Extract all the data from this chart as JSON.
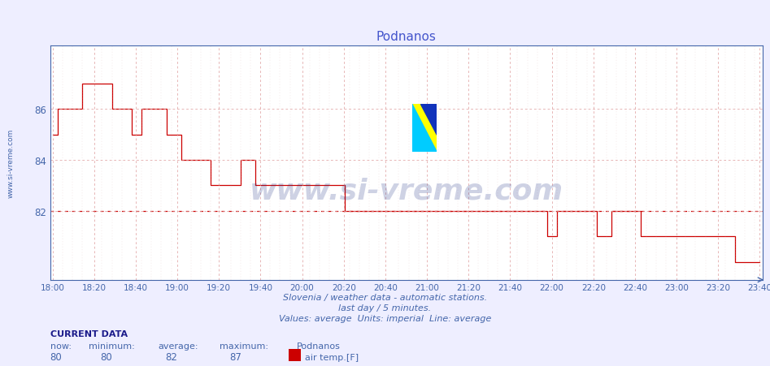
{
  "title": "Podnanos",
  "bg_color": "#eeeeff",
  "plot_bg_color": "#ffffff",
  "line_color": "#cc0000",
  "avg_value": 82,
  "axis_color": "#4466aa",
  "tick_color": "#4466aa",
  "title_color": "#4455cc",
  "ylabel_text": "www.si-vreme.com",
  "xlabel_texts": [
    "18:00",
    "18:20",
    "18:40",
    "19:00",
    "19:20",
    "19:40",
    "20:00",
    "20:20",
    "20:40",
    "21:00",
    "21:20",
    "21:40",
    "22:00",
    "22:20",
    "22:40",
    "23:00",
    "23:20",
    "23:40"
  ],
  "subtitle1": "Slovenia / weather data - automatic stations.",
  "subtitle2": "last day / 5 minutes.",
  "subtitle3": "Values: average  Units: imperial  Line: average",
  "current_data_label": "CURRENT DATA",
  "now_label": "now:",
  "now_value": "80",
  "min_label": "minimum:",
  "min_value": "80",
  "avg_label": "average:",
  "avg_display": "82",
  "max_label": "maximum:",
  "max_value": "87",
  "series_label": "Podnanos",
  "legend_label": "air temp.[F]",
  "ylim_min": 79.3,
  "ylim_max": 88.5,
  "yticks": [
    82,
    84,
    86
  ],
  "watermark_text": "www.si-vreme.com",
  "temp_values": [
    85,
    86,
    86,
    86,
    86,
    86,
    87,
    87,
    87,
    87,
    87,
    87,
    86,
    86,
    86,
    86,
    85,
    85,
    86,
    86,
    86,
    86,
    86,
    85,
    85,
    85,
    84,
    84,
    84,
    84,
    84,
    84,
    83,
    83,
    83,
    83,
    83,
    83,
    84,
    84,
    84,
    83,
    83,
    83,
    83,
    83,
    83,
    83,
    83,
    83,
    83,
    83,
    83,
    83,
    83,
    83,
    83,
    83,
    83,
    82,
    82,
    82,
    82,
    82,
    82,
    82,
    82,
    82,
    82,
    82,
    82,
    82,
    82,
    82,
    82,
    82,
    82,
    82,
    82,
    82,
    82,
    82,
    82,
    82,
    82,
    82,
    82,
    82,
    82,
    82,
    82,
    82,
    82,
    82,
    82,
    82,
    82,
    82,
    82,
    82,
    81,
    81,
    82,
    82,
    82,
    82,
    82,
    82,
    82,
    82,
    81,
    81,
    81,
    82,
    82,
    82,
    82,
    82,
    82,
    81,
    81,
    81,
    81,
    81,
    81,
    81,
    81,
    81,
    81,
    81,
    81,
    81,
    81,
    81,
    81,
    81,
    81,
    81,
    80,
    80,
    80,
    80,
    80,
    80
  ]
}
